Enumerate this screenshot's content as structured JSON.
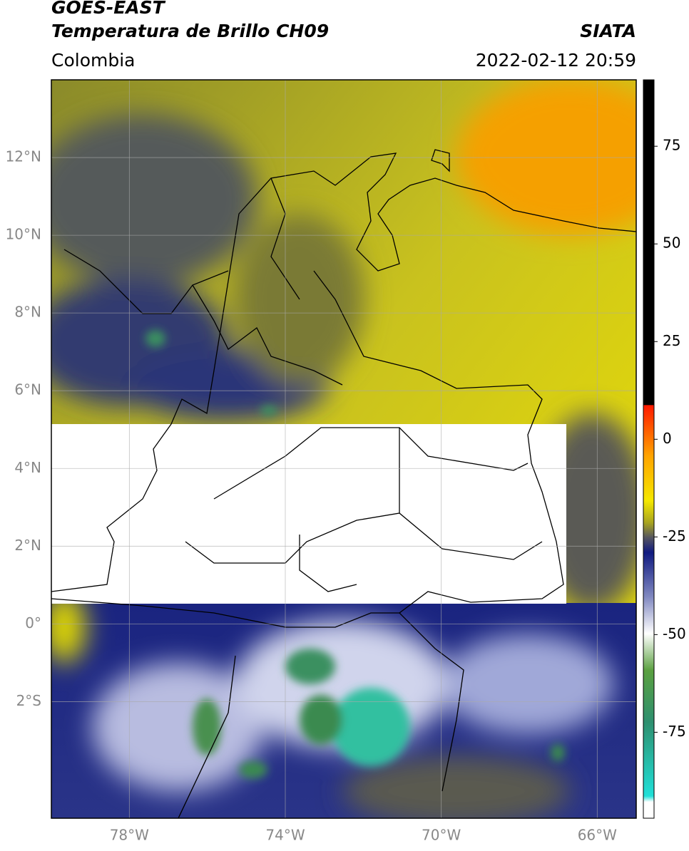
{
  "header": {
    "title": "GOES-EAST",
    "subtitle": "Temperatura de Brillo CH09",
    "source": "SIATA",
    "region": "Colombia",
    "datetime": "2022-02-12 20:59"
  },
  "map": {
    "xlim": [
      -80,
      -65
    ],
    "ylim": [
      -5,
      14
    ],
    "xticks": [
      {
        "value": -78,
        "label": "78°W"
      },
      {
        "value": -74,
        "label": "74°W"
      },
      {
        "value": -70,
        "label": "70°W"
      },
      {
        "value": -66,
        "label": "66°W"
      }
    ],
    "yticks": [
      {
        "value": -2,
        "label": "2°S"
      },
      {
        "value": 0,
        "label": "0°"
      },
      {
        "value": 2,
        "label": "2°N"
      },
      {
        "value": 4,
        "label": "4°N"
      },
      {
        "value": 6,
        "label": "6°N"
      },
      {
        "value": 8,
        "label": "8°N"
      },
      {
        "value": 10,
        "label": "10°N"
      },
      {
        "value": 12,
        "label": "12°N"
      }
    ],
    "grid": true
  },
  "colorbar": {
    "ylim": [
      -97,
      92
    ],
    "yticks": [
      -75,
      -50,
      -25,
      0,
      25,
      50,
      75
    ]
  }
}
